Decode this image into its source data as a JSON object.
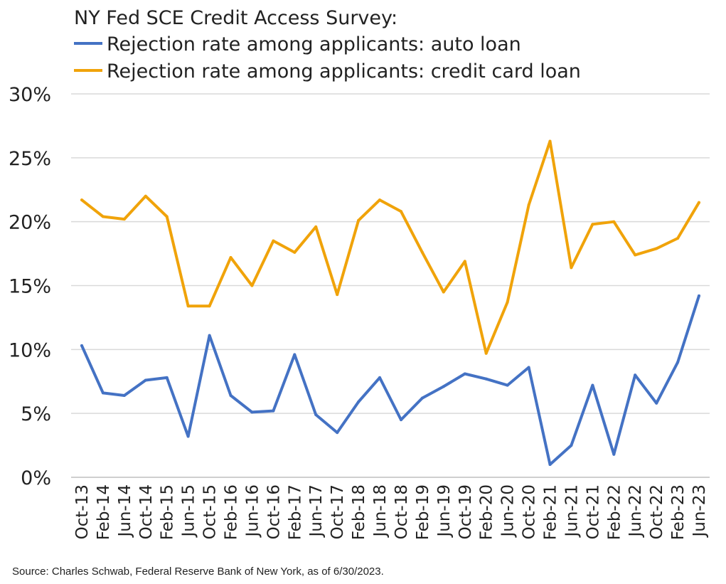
{
  "chart_data": {
    "type": "line",
    "title": "NY Fed SCE Credit Access Survey:",
    "categories": [
      "Oct-13",
      "Feb-14",
      "Jun-14",
      "Oct-14",
      "Feb-15",
      "Jun-15",
      "Oct-15",
      "Feb-16",
      "Jun-16",
      "Oct-16",
      "Feb-17",
      "Jun-17",
      "Oct-17",
      "Feb-18",
      "Jun-18",
      "Oct-18",
      "Feb-19",
      "Jun-19",
      "Oct-19",
      "Feb-20",
      "Jun-20",
      "Oct-20",
      "Feb-21",
      "Jun-21",
      "Oct-21",
      "Feb-22",
      "Jun-22",
      "Oct-22",
      "Feb-23",
      "Jun-23"
    ],
    "series": [
      {
        "name": "Rejection rate among applicants: auto loan",
        "color": "#4472c4",
        "values": [
          10.3,
          6.6,
          6.4,
          7.6,
          7.8,
          3.2,
          11.1,
          6.4,
          5.1,
          5.2,
          9.6,
          4.9,
          3.5,
          5.9,
          7.8,
          4.5,
          6.2,
          7.1,
          8.1,
          7.7,
          7.2,
          8.6,
          1.0,
          2.5,
          7.2,
          1.8,
          8.0,
          5.8,
          9.0,
          14.2
        ]
      },
      {
        "name": "Rejection rate among applicants: credit card loan",
        "color": "#f0a30a",
        "values": [
          21.7,
          20.4,
          20.2,
          22.0,
          20.4,
          13.4,
          13.4,
          17.2,
          15.0,
          18.5,
          17.6,
          19.6,
          14.3,
          20.1,
          21.7,
          20.8,
          17.6,
          14.5,
          16.9,
          9.7,
          13.7,
          21.3,
          26.3,
          16.4,
          19.8,
          20.0,
          17.4,
          17.9,
          18.7,
          21.5
        ]
      }
    ],
    "y_ticks": [
      "0%",
      "5%",
      "10%",
      "15%",
      "20%",
      "25%",
      "30%"
    ],
    "ylim": [
      0,
      30
    ],
    "grid": true,
    "legend_position": "top-left",
    "source": "Source: Charles Schwab, Federal Reserve Bank of New York, as of 6/30/2023."
  }
}
